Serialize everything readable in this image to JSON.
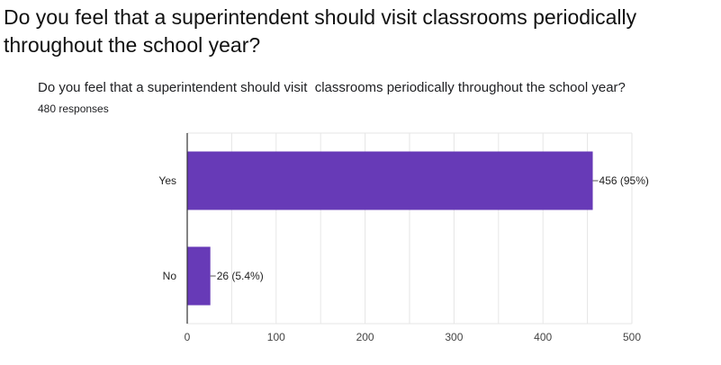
{
  "slide": {
    "title": "Do you feel that a superintendent should visit classrooms periodically throughout the school year?"
  },
  "colors": {
    "bar": "#673AB7",
    "grid": "#e6e6e6",
    "axis": "#333333"
  },
  "chart_data": {
    "type": "bar",
    "orientation": "horizontal",
    "title": "Do you feel that a superintendent should visit  classrooms periodically throughout the school year?",
    "subtitle": "480 responses",
    "categories": [
      "Yes",
      "No"
    ],
    "values": [
      456,
      26
    ],
    "data_labels": [
      "456 (95%)",
      "26 (5.4%)"
    ],
    "xlim": [
      0,
      500
    ],
    "xticks": [
      0,
      100,
      200,
      300,
      400,
      500
    ],
    "xtick_labels": [
      "0",
      "100",
      "200",
      "300",
      "400",
      "500"
    ],
    "grid": true,
    "legend": "none"
  }
}
